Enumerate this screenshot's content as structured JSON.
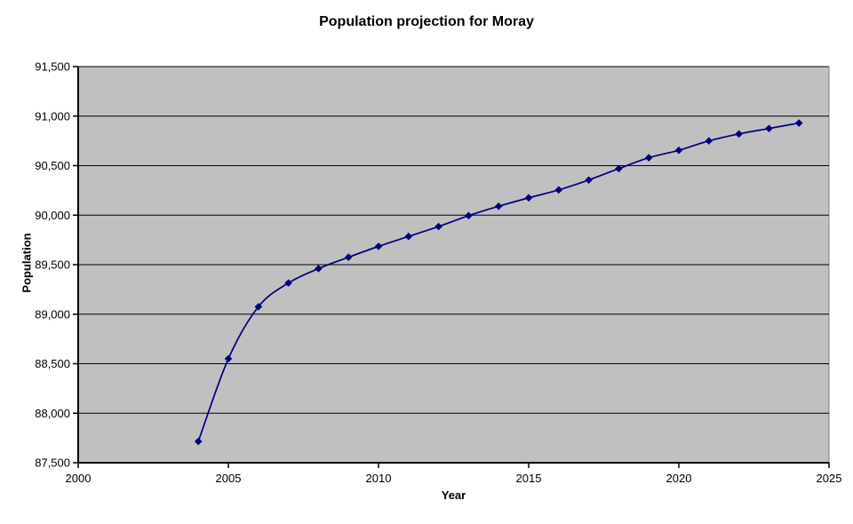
{
  "chart_data": {
    "type": "line",
    "title": "Population projection for Moray",
    "xlabel": "Year",
    "ylabel": "Population",
    "x": [
      2004,
      2005,
      2006,
      2007,
      2008,
      2009,
      2010,
      2011,
      2012,
      2013,
      2014,
      2015,
      2016,
      2017,
      2018,
      2019,
      2020,
      2021,
      2022,
      2023,
      2024
    ],
    "values": [
      87715,
      88550,
      89075,
      89315,
      89460,
      89575,
      89685,
      89785,
      89885,
      89995,
      90090,
      90175,
      90255,
      90355,
      90470,
      90580,
      90655,
      90750,
      90820,
      90875,
      90930
    ],
    "xlim": [
      2000,
      2025
    ],
    "ylim": [
      87500,
      91500
    ],
    "xticks": [
      2000,
      2005,
      2010,
      2015,
      2020,
      2025
    ],
    "xtick_labels": [
      "2000",
      "2005",
      "2010",
      "2015",
      "2020",
      "2025"
    ],
    "yticks": [
      91500,
      91000,
      90500,
      90000,
      89500,
      89000,
      88500,
      88000,
      87500
    ],
    "ytick_labels": [
      "91,500",
      "91,000",
      "90,500",
      "90,000",
      "89,500",
      "89,000",
      "88,500",
      "88,000",
      "87,500"
    ],
    "grid": "horizontal",
    "legend": "none",
    "marker": "diamond",
    "smoothed_line": true,
    "colors": {
      "series": "#000080",
      "plot_background": "#C0C0C0",
      "plot_border": "#808080",
      "gridline": "#000000",
      "axis": "#000000",
      "text": "#000000",
      "background": "#FFFFFF"
    }
  }
}
